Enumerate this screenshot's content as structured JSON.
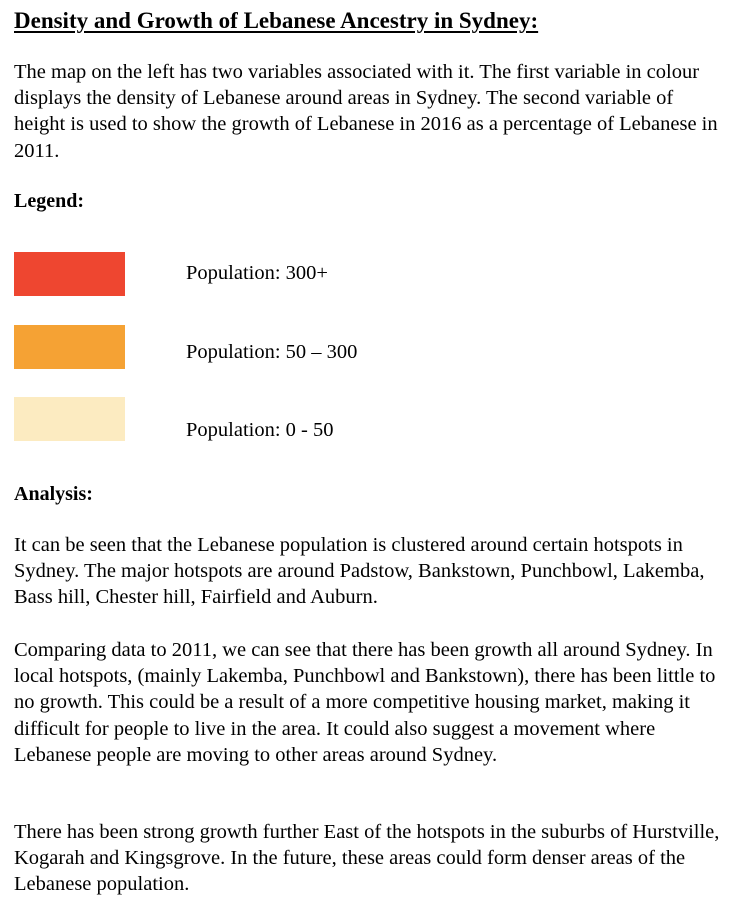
{
  "document": {
    "title": "Density and Growth of Lebanese Ancestry in Sydney:",
    "intro": "The map on the left has two variables associated with it. The first variable in colour displays the density of Lebanese around areas in Sydney. The second variable of height is used to show the growth of Lebanese in 2016 as a percentage of Lebanese in 2011.",
    "legend": {
      "heading": "Legend:",
      "items": [
        {
          "label": "Population: 300+",
          "color": "#ee4630"
        },
        {
          "label": "Population: 50 – 300",
          "color": "#f5a234"
        },
        {
          "label": "Population: 0 - 50",
          "color": "#fcebc1"
        }
      ]
    },
    "analysis": {
      "heading": "Analysis:",
      "paragraphs": [
        "It can be seen that the Lebanese population is clustered around certain hotspots in Sydney. The major hotspots are around Padstow, Bankstown, Punchbowl, Lakemba, Bass hill, Chester hill, Fairfield and Auburn.",
        "Comparing data to 2011, we can see that there has been growth all around Sydney. In local hotspots, (mainly Lakemba, Punchbowl and Bankstown), there has been little to no growth. This could be a result of a more competitive housing market, making it difficult for people to live in the area. It could also suggest a movement where Lebanese people are moving to other areas around Sydney.",
        "There has been strong growth further East of the hotspots in the suburbs of Hurstville, Kogarah and Kingsgrove. In the future, these areas could form denser areas of the Lebanese population."
      ]
    }
  }
}
